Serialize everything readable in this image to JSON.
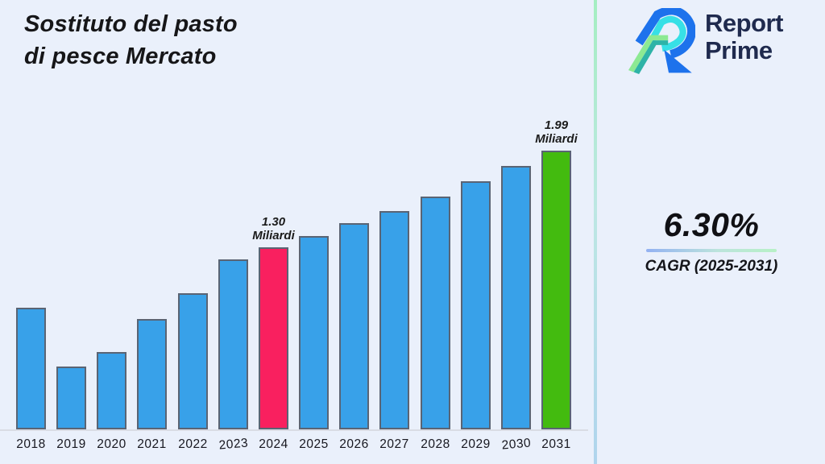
{
  "page": {
    "background": "#EAF0FB"
  },
  "title": {
    "line1": "Sostituto del pasto",
    "line2": "di pesce Mercato"
  },
  "logo": {
    "name_line1": "Report",
    "name_line2": "Prime",
    "text_color": "#1F2A4E",
    "icon_colors": {
      "blue": "#1D72EC",
      "cyan": "#37E0E6",
      "green_light": "#8CE993",
      "teal": "#2EB3A7"
    }
  },
  "divider": {
    "gradient_top": "#A4EEC1",
    "gradient_bottom": "#AFD4ED"
  },
  "cagr": {
    "value": "6.30%",
    "label": "CAGR (2025-2031)",
    "underline_from": "#93B1F2",
    "underline_to": "#B7F1C6"
  },
  "chart_data": {
    "type": "bar",
    "title": "Sostituto del pasto di pesce Mercato",
    "unit": "Miliardi",
    "categories": [
      "2018",
      "2019",
      "2020",
      "2021",
      "2022",
      "2023",
      "2024",
      "2025",
      "2026",
      "2027",
      "2028",
      "2029",
      "2030",
      "2031"
    ],
    "values": [
      0.87,
      0.45,
      0.55,
      0.79,
      0.97,
      1.21,
      1.3,
      1.38,
      1.47,
      1.56,
      1.66,
      1.77,
      1.88,
      1.99
    ],
    "xlabel": "",
    "ylabel": "",
    "ylim": [
      0,
      2.2
    ],
    "grid": false,
    "y_axis_visible": false,
    "legend": "none",
    "bar_color": "#38A1E9",
    "bar_border_color": "#5A6474",
    "highlights": {
      "2024": "#F9205F",
      "2031": "#43BB0F"
    },
    "annotations": [
      {
        "category": "2024",
        "line1": "1.30",
        "line2": "Miliardi"
      },
      {
        "category": "2031",
        "line1": "1.99",
        "line2": "Miliardi"
      }
    ]
  }
}
